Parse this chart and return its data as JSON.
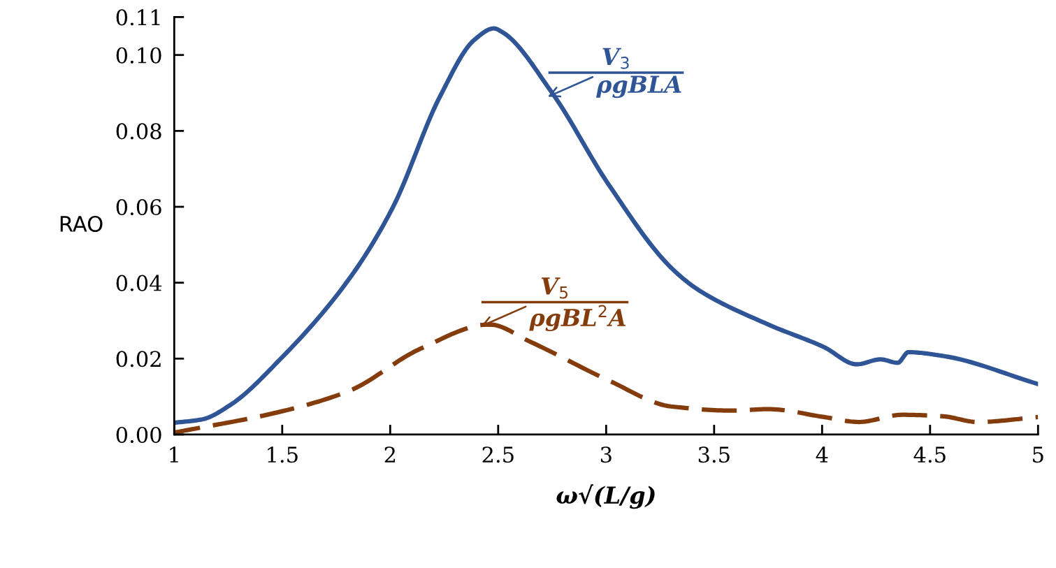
{
  "chart_data": {
    "type": "line",
    "xlabel": "ω√(L/g)",
    "ylabel": "RAO",
    "xlim": [
      1,
      5
    ],
    "xticks": [
      1,
      1.5,
      2,
      2.5,
      3,
      3.5,
      4,
      4.5,
      5
    ],
    "ylim": [
      0,
      0.11
    ],
    "yticks": [
      {
        "value": 0,
        "label": "0.00"
      },
      {
        "value": 0.02,
        "label": "0.02"
      },
      {
        "value": 0.04,
        "label": "0.04"
      },
      {
        "value": 0.06,
        "label": "0.06"
      },
      {
        "value": 0.08,
        "label": "0.08"
      },
      {
        "value": 0.1,
        "label": "0.10"
      },
      {
        "value": 0.11,
        "label": "0.11"
      }
    ],
    "grid": false,
    "legend": false,
    "series": [
      {
        "color": "#2f5597",
        "line_style": "solid",
        "x": [
          1.0,
          1.13,
          1.26,
          1.49,
          1.81,
          2.01,
          2.23,
          2.39,
          2.48,
          2.52,
          2.75,
          3.01,
          3.3,
          3.43,
          3.75,
          4.01,
          4.16,
          4.27,
          4.35,
          4.4,
          4.56,
          5.0
        ],
        "values": [
          0.0031,
          0.004,
          0.0078,
          0.0198,
          0.041,
          0.0596,
          0.089,
          0.104,
          0.107,
          0.106,
          0.09,
          0.066,
          0.044,
          0.038,
          0.029,
          0.023,
          0.0185,
          0.0198,
          0.0189,
          0.0217,
          0.0207,
          0.0133
        ]
      },
      {
        "color": "#843c0c",
        "line_style": "dashed",
        "x": [
          1.0,
          1.49,
          1.81,
          2.14,
          2.46,
          2.65,
          3.01,
          3.3,
          3.59,
          3.75,
          4.01,
          4.17,
          4.37,
          4.56,
          4.72,
          5.0
        ],
        "values": [
          0.0005,
          0.006,
          0.0115,
          0.0226,
          0.029,
          0.0244,
          0.0143,
          0.0074,
          0.0063,
          0.0067,
          0.0046,
          0.0033,
          0.0052,
          0.0048,
          0.0033,
          0.0046
        ]
      }
    ],
    "annotations": [
      "V$_{3}$",
      {
        "text": "ρgBLA",
        "x": 2.73,
        "y": 0.089
      },
      "V$_{5}$",
      {
        "text": "ρgBL$^{2}$A",
        "x": 2.42,
        "y": 0.0285
      }
    ]
  }
}
